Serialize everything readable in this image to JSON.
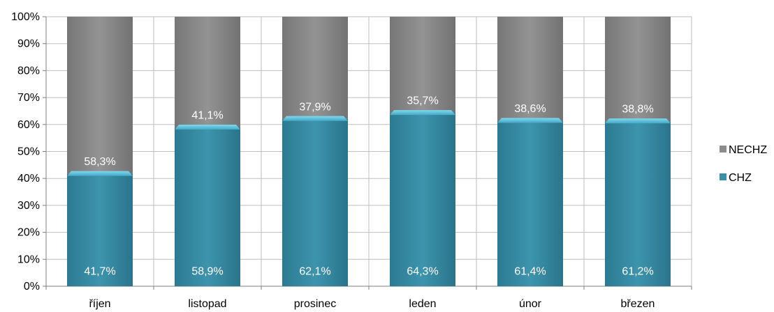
{
  "chart_data": {
    "type": "bar",
    "stacked": true,
    "categories": [
      "říjen",
      "listopad",
      "prosinec",
      "leden",
      "únor",
      "březen"
    ],
    "series": [
      {
        "name": "CHZ",
        "values": [
          41.7,
          58.9,
          62.1,
          64.3,
          61.4,
          61.2
        ],
        "labels": [
          "41,7%",
          "58,9%",
          "62,1%",
          "64,3%",
          "61,4%",
          "61,2%"
        ],
        "color": "#3a8fa8"
      },
      {
        "name": "NECHZ",
        "values": [
          58.3,
          41.1,
          37.9,
          35.7,
          38.6,
          38.8
        ],
        "labels": [
          "58,3%",
          "41,1%",
          "37,9%",
          "35,7%",
          "38,6%",
          "38,8%"
        ],
        "color": "#8c8c8c"
      }
    ],
    "ylim": [
      0,
      100
    ],
    "yticks": [
      "0%",
      "10%",
      "20%",
      "30%",
      "40%",
      "50%",
      "60%",
      "70%",
      "80%",
      "90%",
      "100%"
    ],
    "legend": {
      "position": "right",
      "entries": [
        "NECHZ",
        "CHZ"
      ]
    },
    "grid": true,
    "title": "",
    "xlabel": "",
    "ylabel": ""
  }
}
